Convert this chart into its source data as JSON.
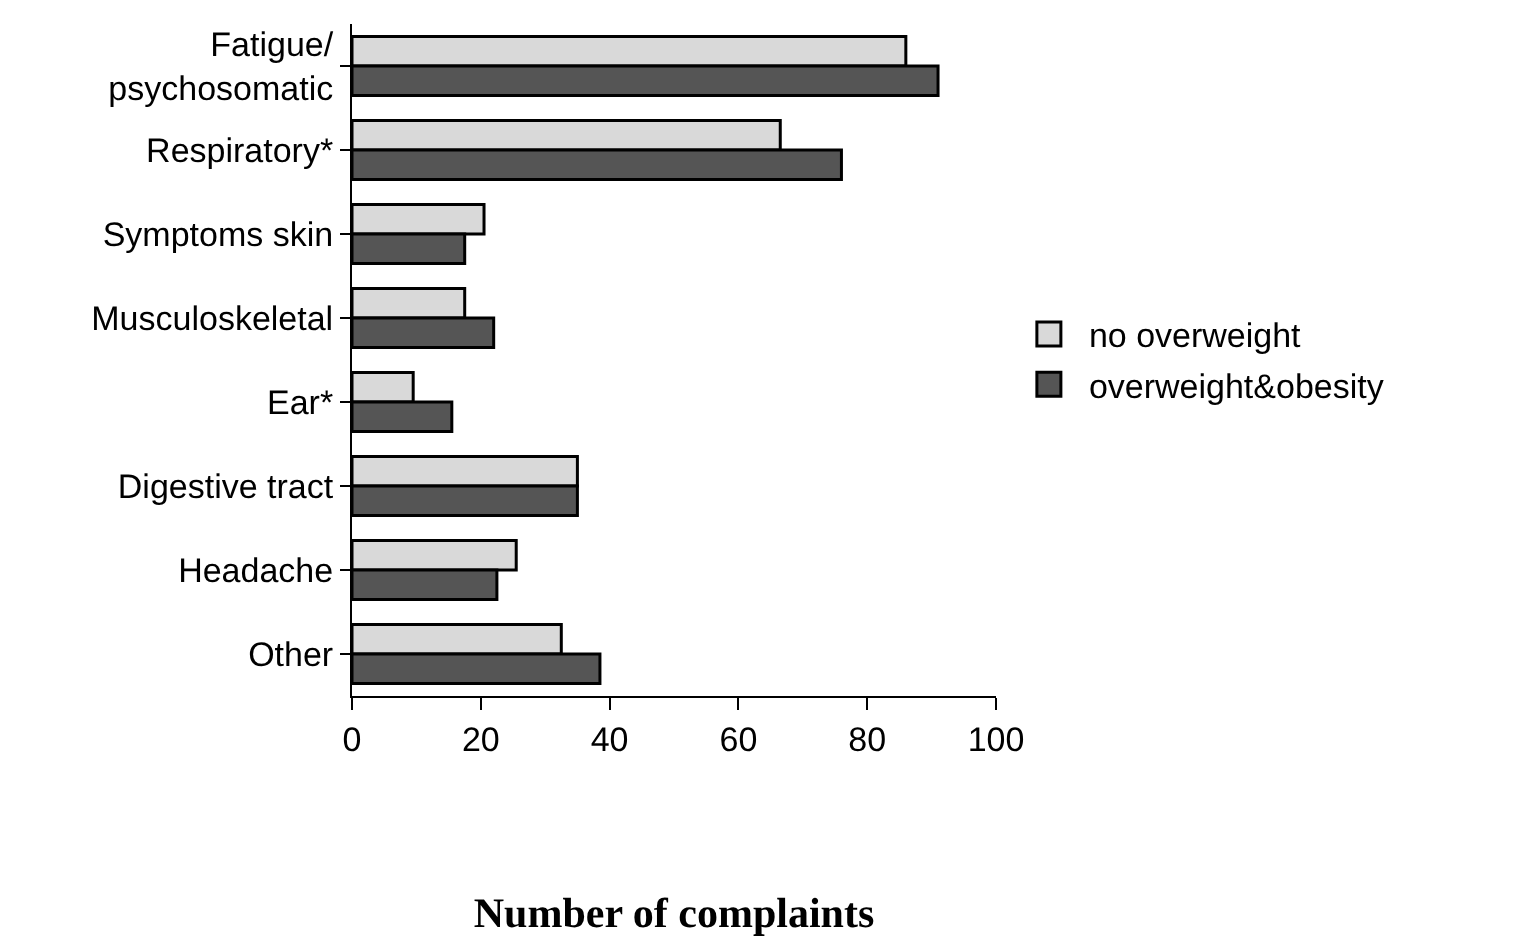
{
  "chart_data": {
    "type": "bar",
    "orientation": "horizontal",
    "xlabel": "Number of complaints",
    "categories": [
      "Fatigue/\npsychosomatic",
      "Respiratory*",
      "Symptoms skin",
      "Musculoskeletal",
      "Ear*",
      "Digestive tract",
      "Headache",
      "Other"
    ],
    "series": [
      {
        "name": "no overweight",
        "color": "#d9d9d9",
        "values": [
          86,
          66.5,
          20.5,
          17.5,
          9.5,
          35,
          25.5,
          32.5
        ]
      },
      {
        "name": "overweight&obesity",
        "color": "#555555",
        "values": [
          91,
          76,
          17.5,
          22,
          15.5,
          35,
          22.5,
          38.5
        ]
      }
    ],
    "xlim": [
      0,
      100
    ],
    "xticks": [
      0,
      20,
      40,
      60,
      80,
      100
    ],
    "grid": false,
    "legend": "right"
  }
}
